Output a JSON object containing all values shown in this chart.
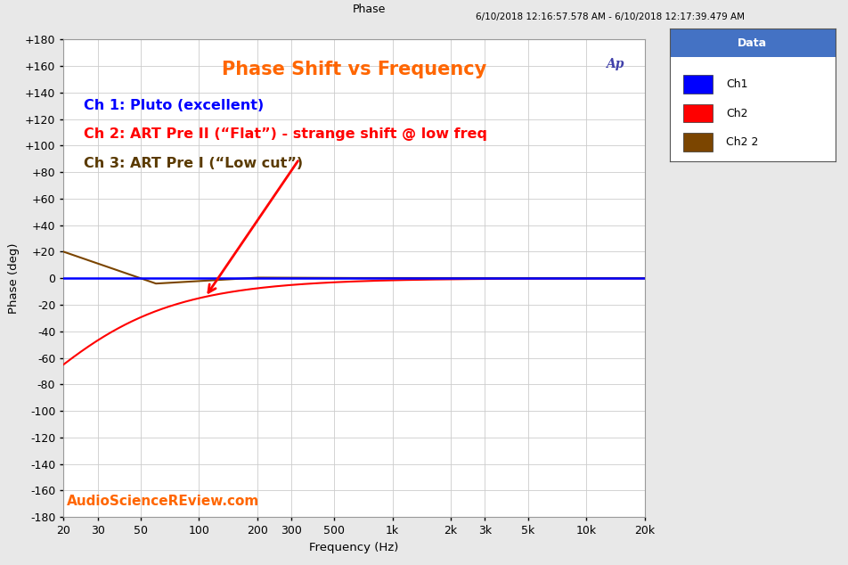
{
  "title": "Phase",
  "subtitle": "6/10/2018 12:16:57.578 AM - 6/10/2018 12:17:39.479 AM",
  "main_title": "Phase Shift vs Frequency",
  "xlabel": "Frequency (Hz)",
  "ylabel": "Phase (deg)",
  "watermark": "AudioScienceREview.com",
  "ch1_color": "#0000FF",
  "ch2_color": "#FF0000",
  "ch3_color": "#7B4500",
  "ch1_label": "Ch1",
  "ch2_label": "Ch2",
  "ch3_label": "Ch2 2",
  "annotation_ch1": "Ch 1: Pluto (excellent)",
  "annotation_ch2": "Ch 2: ART Pre II (“Flat”) - strange shift @ low freq",
  "annotation_ch3": "Ch 3: ART Pre I (“Low cut”)",
  "ylim": [
    -180,
    180
  ],
  "yticks": [
    -180,
    -160,
    -140,
    -120,
    -100,
    -80,
    -60,
    -40,
    -20,
    0,
    20,
    40,
    60,
    80,
    100,
    120,
    140,
    160,
    180
  ],
  "ytick_labels": [
    "-180",
    "-160",
    "-140",
    "-120",
    "-100",
    "-80",
    "-60",
    "-40",
    "-20",
    "0",
    "+20",
    "+40",
    "+60",
    "+80",
    "+100",
    "+120",
    "+140",
    "+160",
    "+180"
  ],
  "xtick_positions": [
    20,
    30,
    50,
    100,
    200,
    300,
    500,
    1000,
    2000,
    3000,
    5000,
    10000,
    20000
  ],
  "xtick_labels": [
    "20",
    "30",
    "50",
    "100",
    "200",
    "300",
    "500",
    "1k",
    "2k",
    "3k",
    "5k",
    "10k",
    "20k"
  ],
  "bg_color": "#E8E8E8",
  "plot_bg_color": "#FFFFFF",
  "grid_color": "#CCCCCC",
  "legend_title": "Data",
  "legend_title_bg": "#4472C4",
  "ap_logo_color": "#4040AA",
  "arrow_color": "#FF0000",
  "title_color": "#FF6600",
  "ch3_annotation_color": "#5A3A00"
}
